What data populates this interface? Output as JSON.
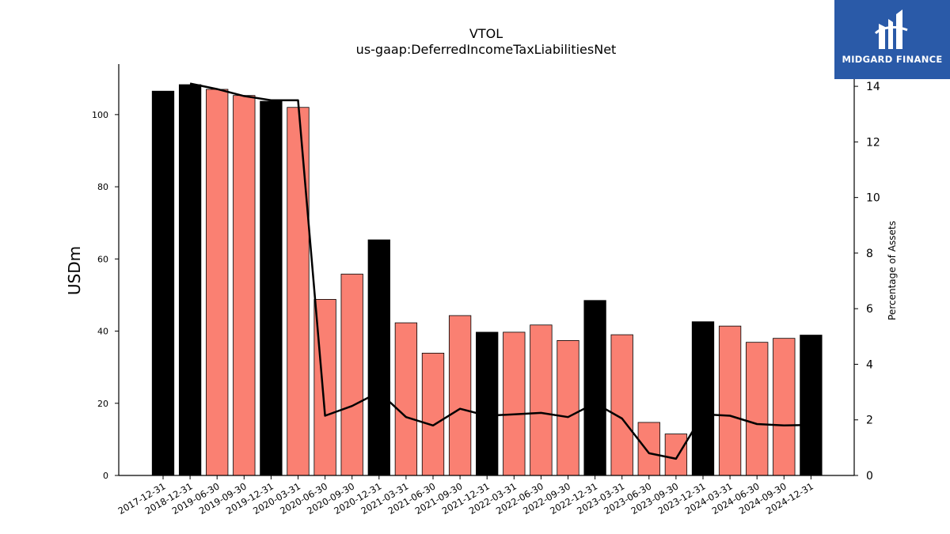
{
  "chart_data": {
    "type": "bar",
    "title": "VTOL",
    "subtitle": "us-gaap:DeferredIncomeTaxLiabilitiesNet",
    "ylabel": "USDm",
    "y2label": "Percentage of Assets",
    "ylim": [
      0,
      114
    ],
    "y2lim": [
      0,
      14.8
    ],
    "yticks": [
      0,
      20,
      40,
      60,
      80,
      100
    ],
    "y2ticks": [
      0,
      2,
      4,
      6,
      8,
      10,
      12,
      14
    ],
    "categories": [
      "2017-12-31",
      "2018-12-31",
      "2019-06-30",
      "2019-09-30",
      "2019-12-31",
      "2020-03-31",
      "2020-06-30",
      "2020-09-30",
      "2020-12-31",
      "2021-03-31",
      "2021-06-30",
      "2021-09-30",
      "2021-12-31",
      "2022-03-31",
      "2022-06-30",
      "2022-09-30",
      "2022-12-31",
      "2023-03-31",
      "2023-06-30",
      "2023-09-30",
      "2023-12-31",
      "2024-03-31",
      "2024-06-30",
      "2024-09-30",
      "2024-12-31"
    ],
    "series": [
      {
        "type": "bar",
        "values": [
          106.5,
          108.3,
          107.0,
          105.3,
          103.7,
          102.0,
          48.8,
          55.8,
          65.3,
          42.3,
          33.9,
          44.3,
          39.7,
          39.7,
          41.7,
          37.4,
          48.5,
          39.0,
          14.7,
          11.5,
          42.6,
          41.4,
          36.9,
          38.0,
          38.9
        ],
        "annual": [
          true,
          true,
          false,
          false,
          true,
          false,
          false,
          false,
          true,
          false,
          false,
          false,
          true,
          false,
          false,
          false,
          true,
          false,
          false,
          false,
          true,
          false,
          false,
          false,
          true
        ]
      },
      {
        "type": "line",
        "axis": "right",
        "values": [
          null,
          14.1,
          13.9,
          13.65,
          13.5,
          13.5,
          2.15,
          2.5,
          3.0,
          2.1,
          1.8,
          2.4,
          2.15,
          2.2,
          2.25,
          2.1,
          2.6,
          2.05,
          0.8,
          0.6,
          2.2,
          2.15,
          1.85,
          1.8,
          1.82
        ]
      }
    ],
    "colors": {
      "annual_bar": "#000000",
      "quarter_bar": "#fa8072",
      "line": "#000000"
    }
  },
  "logo": {
    "text": "MIDGARD FINANCE",
    "background": "#2a5aa8"
  }
}
